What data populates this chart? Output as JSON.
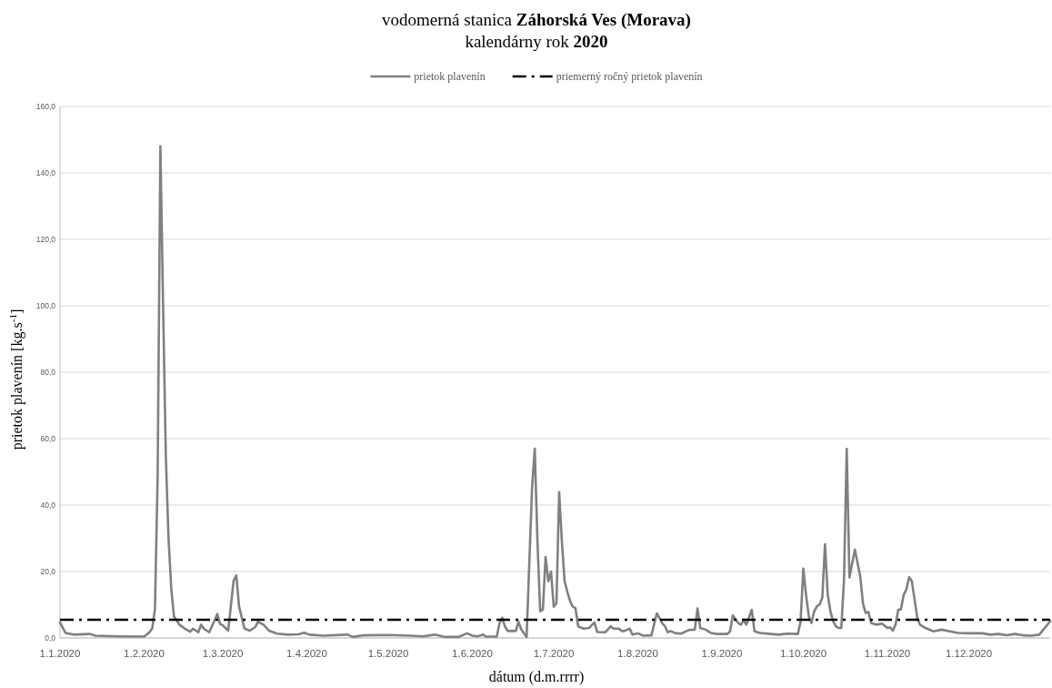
{
  "chart_data": {
    "type": "line",
    "title": "vodomerná stanica Záhorská Ves (Morava)",
    "subtitle": "kalendárny rok 2020",
    "xlabel": "dátum (d.m.rrrr)",
    "ylabel": "prietok plavenín [kg.s$^{-1}$]",
    "x": [
      "2020-01-01",
      "2020-01-03",
      "2020-01-06",
      "2020-01-12",
      "2020-01-14",
      "2020-01-22",
      "2020-02-01",
      "2020-02-03",
      "2020-02-04",
      "2020-02-05",
      "2020-02-06",
      "2020-02-07",
      "2020-02-08",
      "2020-02-09",
      "2020-02-10",
      "2020-02-11",
      "2020-02-12",
      "2020-02-14",
      "2020-02-16",
      "2020-02-18",
      "2020-02-19",
      "2020-02-21",
      "2020-02-22",
      "2020-02-23",
      "2020-02-25",
      "2020-02-28",
      "2020-02-29",
      "2020-03-01",
      "2020-03-03",
      "2020-03-05",
      "2020-03-06",
      "2020-03-07",
      "2020-03-09",
      "2020-03-11",
      "2020-03-13",
      "2020-03-14",
      "2020-03-16",
      "2020-03-18",
      "2020-03-21",
      "2020-03-25",
      "2020-03-29",
      "2020-03-31",
      "2020-04-02",
      "2020-04-07",
      "2020-04-16",
      "2020-04-18",
      "2020-04-22",
      "2020-05-01",
      "2020-05-09",
      "2020-05-14",
      "2020-05-18",
      "2020-05-22",
      "2020-05-27",
      "2020-05-30",
      "2020-06-01",
      "2020-06-03",
      "2020-06-05",
      "2020-06-06",
      "2020-06-10",
      "2020-06-11",
      "2020-06-12",
      "2020-06-13",
      "2020-06-14",
      "2020-06-17",
      "2020-06-18",
      "2020-06-19",
      "2020-06-21",
      "2020-06-23",
      "2020-06-24",
      "2020-06-25",
      "2020-06-26",
      "2020-06-27",
      "2020-06-28",
      "2020-06-29",
      "2020-06-30",
      "2020-07-01",
      "2020-07-02",
      "2020-07-03",
      "2020-07-04",
      "2020-07-05",
      "2020-07-06",
      "2020-07-07",
      "2020-07-08",
      "2020-07-09",
      "2020-07-10",
      "2020-07-12",
      "2020-07-14",
      "2020-07-16",
      "2020-07-17",
      "2020-07-20",
      "2020-07-22",
      "2020-07-23",
      "2020-07-25",
      "2020-07-26",
      "2020-07-27",
      "2020-07-29",
      "2020-07-30",
      "2020-08-01",
      "2020-08-03",
      "2020-08-06",
      "2020-08-08",
      "2020-08-10",
      "2020-08-11",
      "2020-08-12",
      "2020-08-13",
      "2020-08-15",
      "2020-08-17",
      "2020-08-19",
      "2020-08-20",
      "2020-08-22",
      "2020-08-23",
      "2020-08-24",
      "2020-08-26",
      "2020-08-28",
      "2020-08-30",
      "2020-09-03",
      "2020-09-04",
      "2020-09-05",
      "2020-09-07",
      "2020-09-08",
      "2020-09-09",
      "2020-09-10",
      "2020-09-12",
      "2020-09-13",
      "2020-09-15",
      "2020-09-19",
      "2020-09-22",
      "2020-09-25",
      "2020-09-29",
      "2020-09-30",
      "2020-10-01",
      "2020-10-02",
      "2020-10-03",
      "2020-10-04",
      "2020-10-05",
      "2020-10-06",
      "2020-10-07",
      "2020-10-08",
      "2020-10-09",
      "2020-10-10",
      "2020-10-11",
      "2020-10-12",
      "2020-10-13",
      "2020-10-14",
      "2020-10-15",
      "2020-10-16",
      "2020-10-17",
      "2020-10-18",
      "2020-10-20",
      "2020-10-22",
      "2020-10-23",
      "2020-10-24",
      "2020-10-25",
      "2020-10-26",
      "2020-10-28",
      "2020-10-30",
      "2020-11-01",
      "2020-11-02",
      "2020-11-03",
      "2020-11-04",
      "2020-11-05",
      "2020-11-06",
      "2020-11-07",
      "2020-11-08",
      "2020-11-09",
      "2020-11-10",
      "2020-11-12",
      "2020-11-13",
      "2020-11-15",
      "2020-11-18",
      "2020-11-21",
      "2020-11-24",
      "2020-11-27",
      "2020-12-01",
      "2020-12-06",
      "2020-12-09",
      "2020-12-12",
      "2020-12-15",
      "2020-12-18",
      "2020-12-21",
      "2020-12-24",
      "2020-12-27",
      "2020-12-29",
      "2020-12-31"
    ],
    "series": [
      {
        "name": "prietok plavenín",
        "color": "#808080",
        "values": [
          4.7,
          1.5,
          1.0,
          1.2,
          0.7,
          0.5,
          0.4,
          1.7,
          2.9,
          8.7,
          49,
          148,
          100,
          55,
          30,
          15,
          6.5,
          4.0,
          2.8,
          1.9,
          2.8,
          1.7,
          4.0,
          2.8,
          1.7,
          7.2,
          4.2,
          3.8,
          2.2,
          17.3,
          18.8,
          9.5,
          2.8,
          2.2,
          3.3,
          4.9,
          4.0,
          2.2,
          1.3,
          1.0,
          1.1,
          1.6,
          1.0,
          0.7,
          1.0,
          0.3,
          0.8,
          0.9,
          0.7,
          0.5,
          1.0,
          0.3,
          0.3,
          1.4,
          0.7,
          0.5,
          1.0,
          0.4,
          0.4,
          4.4,
          6.1,
          3.5,
          2.1,
          2.1,
          4.9,
          2.6,
          0.3,
          45,
          57,
          29,
          8.0,
          8.6,
          24.4,
          17.1,
          20.0,
          9.4,
          10.5,
          43.9,
          29,
          17.1,
          13.9,
          11.2,
          9.4,
          9.0,
          3.5,
          2.8,
          3.0,
          4.7,
          1.8,
          1.7,
          3.5,
          2.8,
          2.8,
          2.1,
          2.1,
          2.8,
          1.0,
          1.4,
          0.7,
          0.8,
          7.4,
          4.4,
          3.5,
          1.7,
          2.1,
          1.4,
          1.3,
          2.1,
          2.4,
          2.5,
          8.9,
          3.0,
          2.5,
          1.5,
          1.2,
          1.2,
          2.0,
          6.8,
          4.5,
          4.0,
          5.3,
          4.0,
          8.5,
          2.0,
          1.5,
          1.2,
          1.0,
          1.3,
          1.2,
          5.0,
          20.9,
          13.0,
          6.6,
          4.5,
          8.0,
          9.5,
          10.1,
          12.1,
          28.2,
          13.0,
          8.0,
          5.0,
          3.5,
          3.0,
          3.0,
          17.5,
          56.9,
          18.2,
          26.6,
          18.5,
          10.3,
          7.5,
          7.8,
          4.5,
          4.0,
          4.3,
          3.0,
          3.2,
          2.2,
          4.0,
          8.5,
          8.6,
          13.0,
          14.6,
          18.3,
          17.1,
          6.2,
          4.0,
          3.0,
          2.0,
          2.5,
          2.0,
          1.5,
          1.4,
          1.4,
          1.0,
          1.2,
          0.8,
          1.2,
          0.8,
          0.7,
          1.0,
          3.0,
          5.0
        ]
      }
    ],
    "xlim": [
      "2020-01-01",
      "2020-12-31"
    ],
    "xticks": [
      {
        "value": "2020-01-01",
        "label": "1.1.2020"
      },
      {
        "value": "2020-02-01",
        "label": "1.2.2020"
      },
      {
        "value": "2020-03-01",
        "label": "1.3.2020"
      },
      {
        "value": "2020-04-01",
        "label": "1.4.2020"
      },
      {
        "value": "2020-05-01",
        "label": "1.5.2020"
      },
      {
        "value": "2020-06-01",
        "label": "1.6.2020"
      },
      {
        "value": "2020-07-01",
        "label": "1.7.2020"
      },
      {
        "value": "2020-08-01",
        "label": "1.8.2020"
      },
      {
        "value": "2020-09-01",
        "label": "1.9.2020"
      },
      {
        "value": "2020-10-01",
        "label": "1.10.2020"
      },
      {
        "value": "2020-11-01",
        "label": "1.11.2020"
      },
      {
        "value": "2020-12-01",
        "label": "1.12.2020"
      }
    ],
    "ylim": [
      0,
      160
    ],
    "yticks": [
      {
        "value": 0,
        "label": "0,0"
      },
      {
        "value": 20,
        "label": "20,0"
      },
      {
        "value": 40,
        "label": "40,0"
      },
      {
        "value": 60,
        "label": "60,0"
      },
      {
        "value": 80,
        "label": "80,0"
      },
      {
        "value": 100,
        "label": "100,0"
      },
      {
        "value": 120,
        "label": "120,0"
      },
      {
        "value": 140,
        "label": "140,0"
      },
      {
        "value": 160,
        "label": "160,0"
      }
    ],
    "grid": "y",
    "legend": "top",
    "ref_lines": [
      {
        "axis": "y",
        "value": 5.5,
        "label": "priemerný ročný prietok plavenín",
        "color": "#000000",
        "line_style": "dashdot"
      }
    ]
  }
}
